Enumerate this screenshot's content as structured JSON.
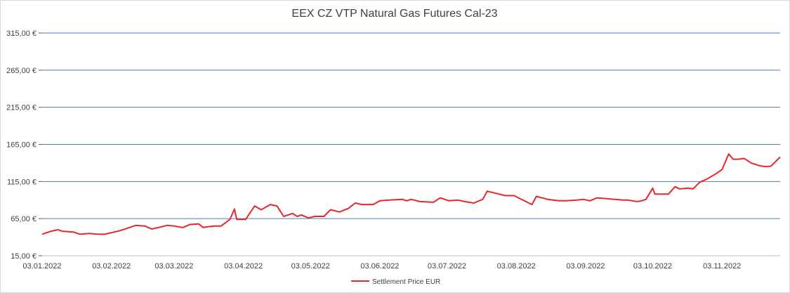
{
  "chart_data": {
    "type": "line",
    "title": "EEX CZ VTP Natural Gas Futures Cal-23",
    "xlabel": "",
    "ylabel": "",
    "x_range": [
      "2022-01-03",
      "2022-11-29"
    ],
    "ylim": [
      15,
      315
    ],
    "y_ticks": [
      "15,00 €",
      "65,00 €",
      "115,00 €",
      "165,00 €",
      "215,00 €",
      "265,00 €",
      "315,00 €"
    ],
    "y_tick_values": [
      15,
      65,
      115,
      165,
      215,
      265,
      315
    ],
    "x_ticks": [
      {
        "date": "2022-01-03",
        "label": "03.01.2022"
      },
      {
        "date": "2022-02-03",
        "label": "03.02.2022"
      },
      {
        "date": "2022-03-03",
        "label": "03.03.2022"
      },
      {
        "date": "2022-04-03",
        "label": "03.04.2022"
      },
      {
        "date": "2022-05-03",
        "label": "03.05.2022"
      },
      {
        "date": "2022-06-03",
        "label": "03.06.2022"
      },
      {
        "date": "2022-07-03",
        "label": "03.07.2022"
      },
      {
        "date": "2022-08-03",
        "label": "03.08.2022"
      },
      {
        "date": "2022-09-03",
        "label": "03.09.2022"
      },
      {
        "date": "2022-10-03",
        "label": "03.10.2022"
      },
      {
        "date": "2022-11-03",
        "label": "03.11.2022"
      }
    ],
    "grid": true,
    "legend_position": "bottom",
    "series": [
      {
        "name": "Settlement Price EUR",
        "color": "#e8262b",
        "points": [
          [
            "2022-01-03",
            44
          ],
          [
            "2022-01-07",
            48
          ],
          [
            "2022-01-10",
            50
          ],
          [
            "2022-01-12",
            48
          ],
          [
            "2022-01-17",
            47
          ],
          [
            "2022-01-20",
            44
          ],
          [
            "2022-01-24",
            45
          ],
          [
            "2022-01-28",
            44
          ],
          [
            "2022-01-31",
            44
          ],
          [
            "2022-02-03",
            46
          ],
          [
            "2022-02-07",
            49
          ],
          [
            "2022-02-10",
            52
          ],
          [
            "2022-02-14",
            56
          ],
          [
            "2022-02-18",
            55
          ],
          [
            "2022-02-21",
            51
          ],
          [
            "2022-02-24",
            53
          ],
          [
            "2022-02-28",
            56
          ],
          [
            "2022-03-03",
            55
          ],
          [
            "2022-03-07",
            53
          ],
          [
            "2022-03-10",
            57
          ],
          [
            "2022-03-14",
            58
          ],
          [
            "2022-03-16",
            53
          ],
          [
            "2022-03-18",
            54
          ],
          [
            "2022-03-21",
            55
          ],
          [
            "2022-03-24",
            55
          ],
          [
            "2022-03-28",
            64
          ],
          [
            "2022-03-30",
            78
          ],
          [
            "2022-03-31",
            64
          ],
          [
            "2022-04-04",
            64
          ],
          [
            "2022-04-08",
            82
          ],
          [
            "2022-04-11",
            77
          ],
          [
            "2022-04-15",
            84
          ],
          [
            "2022-04-18",
            82
          ],
          [
            "2022-04-21",
            68
          ],
          [
            "2022-04-25",
            72
          ],
          [
            "2022-04-27",
            68
          ],
          [
            "2022-04-29",
            70
          ],
          [
            "2022-05-02",
            66
          ],
          [
            "2022-05-05",
            68
          ],
          [
            "2022-05-09",
            68
          ],
          [
            "2022-05-12",
            77
          ],
          [
            "2022-05-16",
            74
          ],
          [
            "2022-05-20",
            79
          ],
          [
            "2022-05-23",
            86
          ],
          [
            "2022-05-26",
            84
          ],
          [
            "2022-05-31",
            84
          ],
          [
            "2022-06-03",
            89
          ],
          [
            "2022-06-07",
            90
          ],
          [
            "2022-06-13",
            91
          ],
          [
            "2022-06-15",
            89
          ],
          [
            "2022-06-17",
            91
          ],
          [
            "2022-06-21",
            88
          ],
          [
            "2022-06-27",
            87
          ],
          [
            "2022-06-30",
            93
          ],
          [
            "2022-07-04",
            89
          ],
          [
            "2022-07-08",
            90
          ],
          [
            "2022-07-11",
            88
          ],
          [
            "2022-07-15",
            86
          ],
          [
            "2022-07-19",
            91
          ],
          [
            "2022-07-21",
            102
          ],
          [
            "2022-07-25",
            99
          ],
          [
            "2022-07-29",
            96
          ],
          [
            "2022-08-02",
            96
          ],
          [
            "2022-08-04",
            93
          ],
          [
            "2022-08-08",
            87
          ],
          [
            "2022-08-10",
            84
          ],
          [
            "2022-08-12",
            95
          ],
          [
            "2022-08-17",
            91
          ],
          [
            "2022-08-22",
            89
          ],
          [
            "2022-08-25",
            89
          ],
          [
            "2022-08-30",
            90
          ],
          [
            "2022-09-02",
            91
          ],
          [
            "2022-09-05",
            89
          ],
          [
            "2022-09-08",
            93
          ],
          [
            "2022-09-12",
            92
          ],
          [
            "2022-09-16",
            91
          ],
          [
            "2022-09-20",
            90
          ],
          [
            "2022-09-22",
            90
          ],
          [
            "2022-09-26",
            88
          ],
          [
            "2022-09-28",
            89
          ],
          [
            "2022-09-30",
            91
          ],
          [
            "2022-10-03",
            106
          ],
          [
            "2022-10-04",
            98
          ],
          [
            "2022-10-07",
            98
          ],
          [
            "2022-10-10",
            98
          ],
          [
            "2022-10-13",
            108
          ],
          [
            "2022-10-15",
            105
          ],
          [
            "2022-10-19",
            106
          ],
          [
            "2022-10-21",
            105
          ],
          [
            "2022-10-24",
            114
          ],
          [
            "2022-10-27",
            118
          ],
          [
            "2022-10-31",
            125
          ],
          [
            "2022-11-03",
            131
          ],
          [
            "2022-11-06",
            152
          ],
          [
            "2022-11-08",
            145
          ],
          [
            "2022-11-10",
            145
          ],
          [
            "2022-11-13",
            146
          ],
          [
            "2022-11-15",
            142
          ],
          [
            "2022-11-16",
            140
          ],
          [
            "2022-11-20",
            136
          ],
          [
            "2022-11-23",
            135
          ],
          [
            "2022-11-25",
            136
          ],
          [
            "2022-11-29",
            148
          ]
        ]
      }
    ]
  }
}
